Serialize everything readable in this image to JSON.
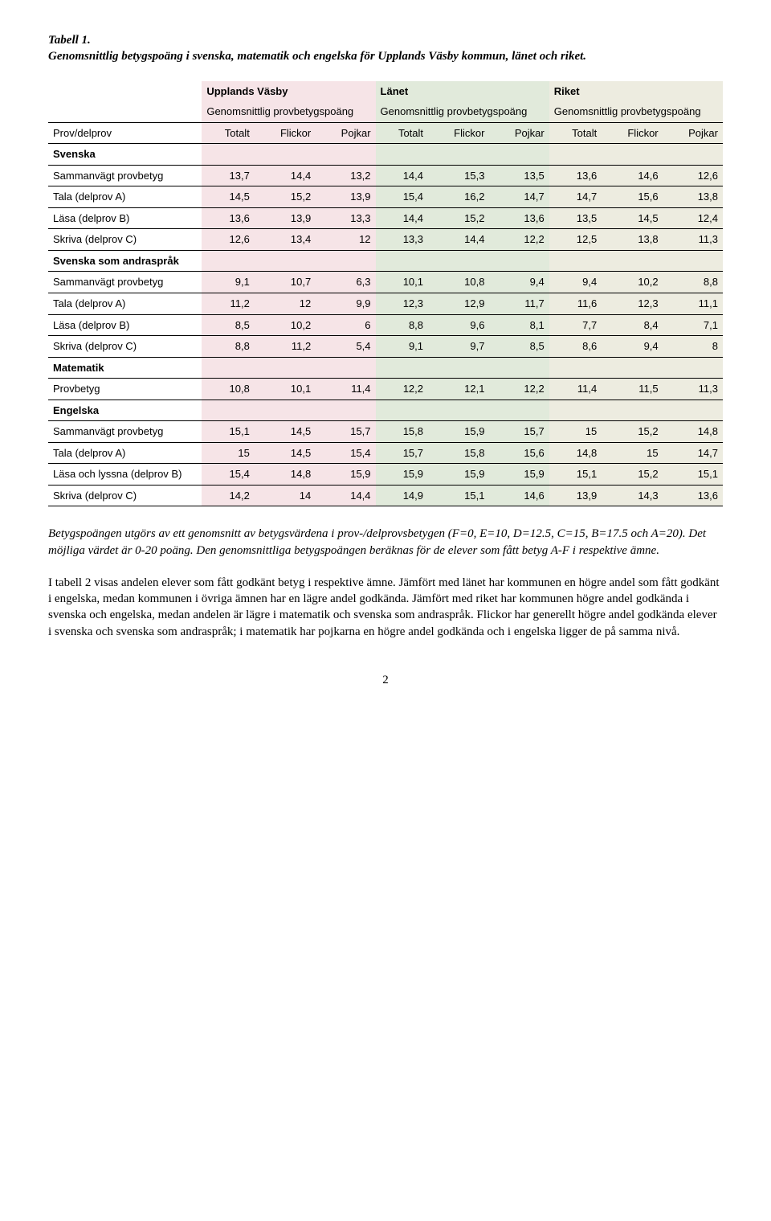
{
  "title": {
    "line1": "Tabell 1.",
    "line2": "Genomsnittlig betygspoäng i svenska, matematik och engelska för Upplands Väsby kommun, länet och riket."
  },
  "table": {
    "groups": [
      {
        "label": "Upplands Väsby",
        "sub": "Genomsnittlig provbetygspoäng",
        "color": "#f6e4e7"
      },
      {
        "label": "Länet",
        "sub": "Genomsnittlig provbetygspoäng",
        "color": "#e1eadb"
      },
      {
        "label": "Riket",
        "sub": "Genomsnittlig provbetygspoäng",
        "color": "#edece0"
      }
    ],
    "first_col_header": "Prov/delprov",
    "col_labels": [
      "Totalt",
      "Flickor",
      "Pojkar",
      "Totalt",
      "Flickor",
      "Pojkar",
      "Totalt",
      "Flickor",
      "Pojkar"
    ],
    "rows": [
      {
        "type": "section",
        "label": "Svenska"
      },
      {
        "type": "data",
        "label": "Sammanvägt provbetyg",
        "values": [
          "13,7",
          "14,4",
          "13,2",
          "14,4",
          "15,3",
          "13,5",
          "13,6",
          "14,6",
          "12,6"
        ]
      },
      {
        "type": "data",
        "label": "Tala (delprov A)",
        "values": [
          "14,5",
          "15,2",
          "13,9",
          "15,4",
          "16,2",
          "14,7",
          "14,7",
          "15,6",
          "13,8"
        ]
      },
      {
        "type": "data",
        "label": "Läsa (delprov B)",
        "values": [
          "13,6",
          "13,9",
          "13,3",
          "14,4",
          "15,2",
          "13,6",
          "13,5",
          "14,5",
          "12,4"
        ]
      },
      {
        "type": "data",
        "label": "Skriva (delprov C)",
        "values": [
          "12,6",
          "13,4",
          "12",
          "13,3",
          "14,4",
          "12,2",
          "12,5",
          "13,8",
          "11,3"
        ]
      },
      {
        "type": "section",
        "label": "Svenska som andraspråk"
      },
      {
        "type": "data",
        "label": "Sammanvägt provbetyg",
        "values": [
          "9,1",
          "10,7",
          "6,3",
          "10,1",
          "10,8",
          "9,4",
          "9,4",
          "10,2",
          "8,8"
        ]
      },
      {
        "type": "data",
        "label": "Tala (delprov A)",
        "values": [
          "11,2",
          "12",
          "9,9",
          "12,3",
          "12,9",
          "11,7",
          "11,6",
          "12,3",
          "11,1"
        ]
      },
      {
        "type": "data",
        "label": "Läsa (delprov B)",
        "values": [
          "8,5",
          "10,2",
          "6",
          "8,8",
          "9,6",
          "8,1",
          "7,7",
          "8,4",
          "7,1"
        ]
      },
      {
        "type": "data",
        "label": "Skriva (delprov C)",
        "values": [
          "8,8",
          "11,2",
          "5,4",
          "9,1",
          "9,7",
          "8,5",
          "8,6",
          "9,4",
          "8"
        ]
      },
      {
        "type": "section",
        "label": "Matematik"
      },
      {
        "type": "data",
        "label": "Provbetyg",
        "values": [
          "10,8",
          "10,1",
          "11,4",
          "12,2",
          "12,1",
          "12,2",
          "11,4",
          "11,5",
          "11,3"
        ]
      },
      {
        "type": "section",
        "label": "Engelska"
      },
      {
        "type": "data",
        "label": "Sammanvägt provbetyg",
        "values": [
          "15,1",
          "14,5",
          "15,7",
          "15,8",
          "15,9",
          "15,7",
          "15",
          "15,2",
          "14,8"
        ]
      },
      {
        "type": "data",
        "label": "Tala (delprov A)",
        "values": [
          "15",
          "14,5",
          "15,4",
          "15,7",
          "15,8",
          "15,6",
          "14,8",
          "15",
          "14,7"
        ]
      },
      {
        "type": "data",
        "label": "Läsa och lyssna (delprov B)",
        "values": [
          "15,4",
          "14,8",
          "15,9",
          "15,9",
          "15,9",
          "15,9",
          "15,1",
          "15,2",
          "15,1"
        ]
      },
      {
        "type": "data",
        "label": "Skriva (delprov C)",
        "values": [
          "14,2",
          "14",
          "14,4",
          "14,9",
          "15,1",
          "14,6",
          "13,9",
          "14,3",
          "13,6"
        ]
      }
    ]
  },
  "footnote": "Betygspoängen utgörs av ett genomsnitt av betygsvärdena i prov-/delprovsbetygen (F=0, E=10, D=12.5, C=15, B=17.5 och A=20). Det möjliga värdet är 0-20 poäng. Den genomsnittliga betygspoängen beräknas för de elever som fått betyg A-F i respektive ämne.",
  "paragraph": "I tabell 2 visas andelen elever som fått godkänt betyg i respektive ämne. Jämfört med länet har kommunen en högre andel som fått godkänt i engelska, medan kommunen i övriga ämnen har en lägre andel godkända. Jämfört med riket har kommunen högre andel godkända i svenska och engelska, medan andelen är lägre i matematik och svenska som andraspråk. Flickor har generellt högre andel godkända elever i svenska och svenska som andraspråk; i matematik har pojkarna en högre andel godkända och i engelska ligger de på samma nivå.",
  "page_number": "2",
  "styling": {
    "body_font": "Times New Roman",
    "table_font": "Arial",
    "body_font_size_pt": 12,
    "table_font_size_pt": 10,
    "background_color": "#ffffff",
    "text_color": "#000000",
    "border_color": "#000000",
    "group_colors": [
      "#f6e4e7",
      "#e1eadb",
      "#edece0"
    ]
  }
}
